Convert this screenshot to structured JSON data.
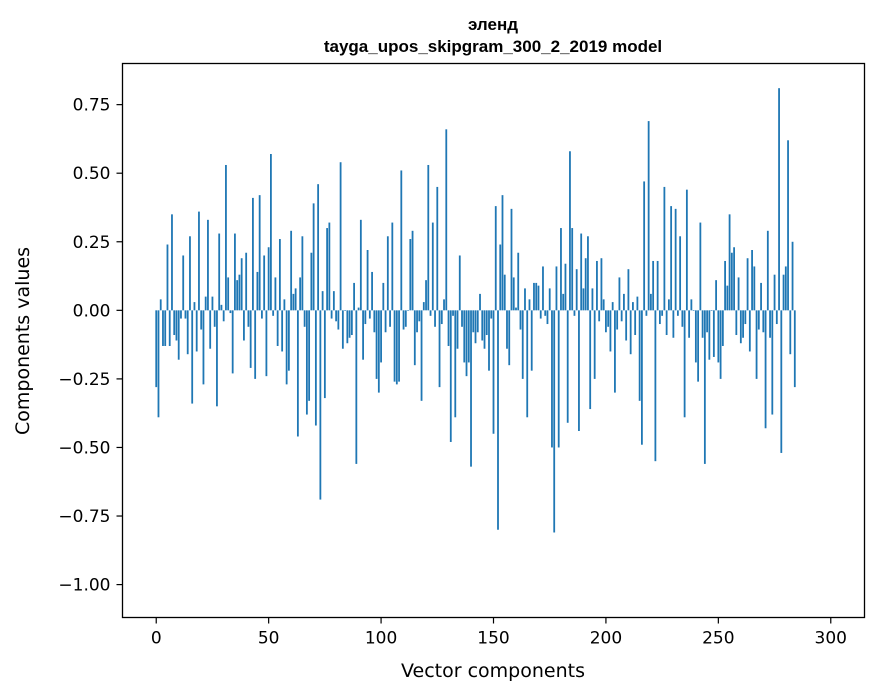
{
  "chart_data": {
    "type": "bar",
    "title_line1": "эленд",
    "title_line2": "tayga_upos_skipgram_300_2_2019 model",
    "xlabel": "Vector components",
    "ylabel": "Components values",
    "xlim": [
      -15,
      315
    ],
    "ylim": [
      -1.12,
      0.9
    ],
    "xticks": [
      0,
      50,
      100,
      150,
      200,
      250,
      300
    ],
    "yticks": [
      -1.0,
      -0.75,
      -0.5,
      -0.25,
      0.0,
      0.25,
      0.5,
      0.75
    ],
    "ytick_labels": [
      "−1.00",
      "−0.75",
      "−0.50",
      "−0.25",
      "0.00",
      "0.25",
      "0.50",
      "0.75"
    ],
    "xtick_labels": [
      "0",
      "50",
      "100",
      "150",
      "200",
      "250",
      "300"
    ],
    "bar_color": "#1f77b4",
    "grid": false,
    "values": [
      -0.28,
      -0.39,
      0.04,
      -0.13,
      -0.13,
      0.24,
      -0.13,
      0.35,
      -0.09,
      -0.11,
      -0.18,
      -0.03,
      0.2,
      -0.03,
      -0.16,
      0.27,
      -0.34,
      0.03,
      -0.15,
      0.36,
      -0.07,
      -0.27,
      0.05,
      0.33,
      -0.14,
      0.05,
      -0.06,
      -0.35,
      0.28,
      0.02,
      -0.04,
      0.53,
      0.12,
      -0.01,
      -0.23,
      0.28,
      0.11,
      0.13,
      0.19,
      -0.11,
      0.21,
      -0.06,
      -0.21,
      0.41,
      -0.25,
      0.14,
      0.42,
      -0.03,
      0.2,
      -0.24,
      0.23,
      0.57,
      -0.02,
      0.12,
      -0.13,
      0.26,
      -0.15,
      0.04,
      -0.27,
      -0.22,
      0.29,
      0.06,
      0.08,
      -0.46,
      0.12,
      0.27,
      -0.06,
      -0.38,
      -0.33,
      0.21,
      0.39,
      -0.42,
      0.46,
      -0.69,
      0.07,
      -0.32,
      0.3,
      0.32,
      -0.03,
      0.07,
      -0.04,
      -0.07,
      0.54,
      -0.14,
      0.0,
      -0.12,
      -0.1,
      -0.09,
      0.1,
      -0.56,
      0.01,
      0.33,
      -0.18,
      -0.05,
      0.22,
      -0.03,
      0.14,
      -0.08,
      -0.25,
      -0.3,
      -0.19,
      0.1,
      -0.08,
      0.27,
      -0.06,
      0.32,
      -0.26,
      -0.27,
      -0.26,
      0.51,
      -0.07,
      -0.06,
      0.0,
      0.26,
      0.29,
      -0.2,
      -0.08,
      -0.04,
      -0.33,
      0.03,
      0.11,
      0.53,
      -0.02,
      0.32,
      -0.06,
      0.45,
      -0.28,
      -0.05,
      0.04,
      0.66,
      -0.13,
      -0.48,
      -0.02,
      -0.39,
      -0.14,
      0.2,
      -0.06,
      -0.19,
      -0.24,
      -0.19,
      -0.57,
      -0.08,
      -0.12,
      -0.08,
      0.06,
      -0.11,
      -0.14,
      -0.09,
      -0.22,
      -0.03,
      -0.45,
      0.38,
      -0.8,
      0.24,
      0.42,
      0.13,
      -0.14,
      -0.2,
      0.37,
      0.12,
      0.01,
      0.21,
      -0.07,
      -0.25,
      0.08,
      -0.39,
      0.04,
      -0.22,
      0.1,
      0.1,
      0.09,
      -0.03,
      0.16,
      -0.02,
      -0.05,
      0.08,
      -0.5,
      -0.81,
      0.16,
      -0.5,
      0.3,
      0.06,
      0.17,
      -0.41,
      0.58,
      0.3,
      -0.02,
      0.15,
      -0.44,
      0.28,
      0.08,
      0.19,
      0.27,
      -0.36,
      0.08,
      -0.25,
      0.18,
      -0.04,
      0.19,
      0.04,
      -0.08,
      -0.06,
      -0.15,
      0.03,
      -0.3,
      -0.07,
      0.12,
      -0.04,
      0.06,
      -0.11,
      0.15,
      -0.16,
      0.03,
      -0.09,
      0.05,
      -0.33,
      -0.49,
      0.47,
      -0.02,
      0.69,
      0.06,
      0.18,
      -0.55,
      0.18,
      -0.05,
      -0.02,
      0.45,
      -0.09,
      0.04,
      0.38,
      -0.1,
      0.37,
      -0.02,
      0.27,
      -0.06,
      -0.39,
      0.44,
      -0.1,
      0.04,
      0.0,
      -0.19,
      -0.26,
      0.32,
      -0.1,
      -0.56,
      -0.08,
      -0.18,
      0.0,
      -0.17,
      0.11,
      -0.19,
      -0.25,
      -0.13,
      0.18,
      0.09,
      0.35,
      0.21,
      0.23,
      -0.09,
      0.12,
      -0.12,
      -0.1,
      -0.05,
      0.19,
      -0.15,
      0.22,
      0.16,
      -0.25,
      -0.07,
      0.1,
      -0.08,
      -0.43,
      0.29,
      -0.1,
      -0.38,
      0.13,
      -0.05,
      0.81,
      -0.52,
      0.13,
      0.16,
      0.62,
      -0.16,
      0.25,
      -0.28
    ]
  }
}
